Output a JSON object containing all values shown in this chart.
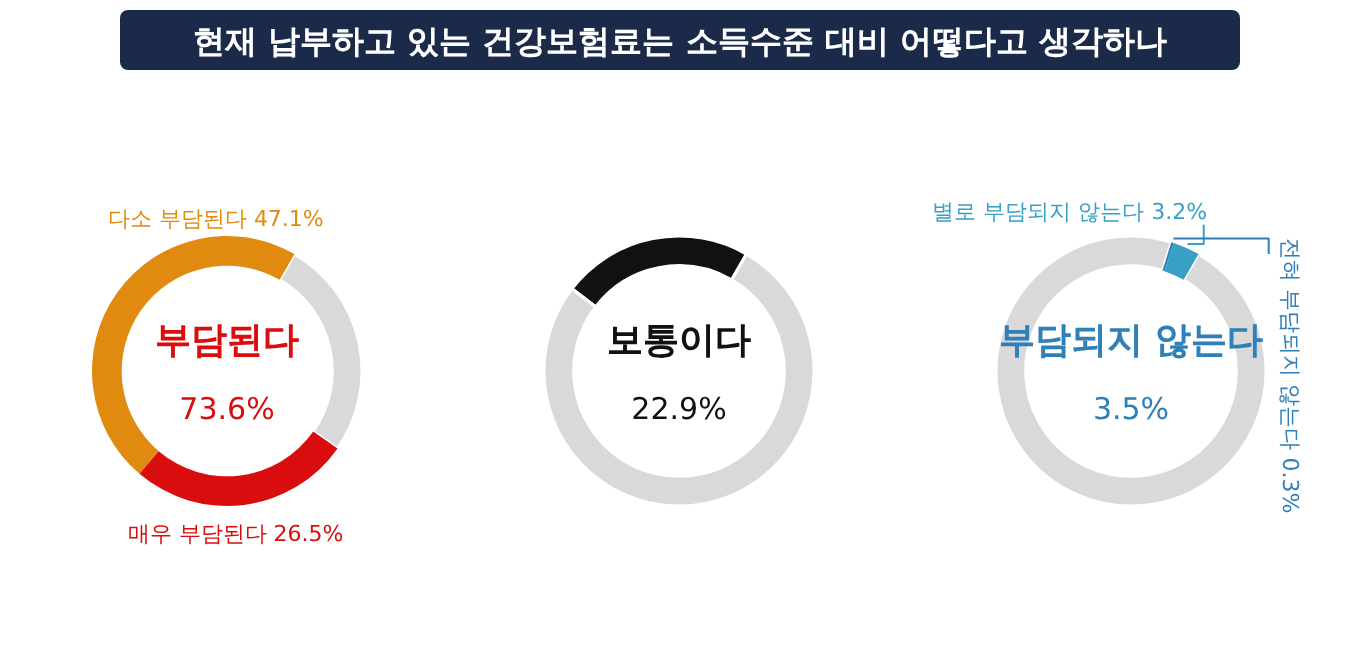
{
  "chart_data": [
    {
      "type": "donut",
      "title": "현재 납부하고 있는 건강보험료는 소득수준 대비 어떻다고 생각하나",
      "categories": [
        "다소 부담된다",
        "매우 부담된다",
        null
      ],
      "values": [
        47.1,
        26.5,
        26.4
      ],
      "colors": [
        "#e08a10",
        "#d90d0d",
        "#d9d9d9"
      ],
      "value_labels": [
        "47.1%",
        "26.5%",
        null
      ],
      "annotations": [
        "부담된다",
        "73.6%"
      ]
    },
    {
      "type": "donut",
      "categories": [
        null,
        null
      ],
      "values": [
        22.9,
        77.1
      ],
      "colors": [
        "#111111",
        "#d9d9d9"
      ],
      "annotations": [
        "보통이다",
        "22.9%"
      ]
    },
    {
      "type": "donut",
      "categories": [
        "별로 부담되지 않는다",
        "전혀 부담되지 않는다",
        null
      ],
      "values": [
        3.2,
        0.3,
        96.5
      ],
      "colors": [
        "#3a9fc4",
        "#2f7fb8",
        "#d9d9d9"
      ],
      "value_labels": [
        "3.2%",
        "0.3%",
        null
      ],
      "annotations": [
        "부담되지 않는다",
        "3.5%"
      ]
    }
  ]
}
